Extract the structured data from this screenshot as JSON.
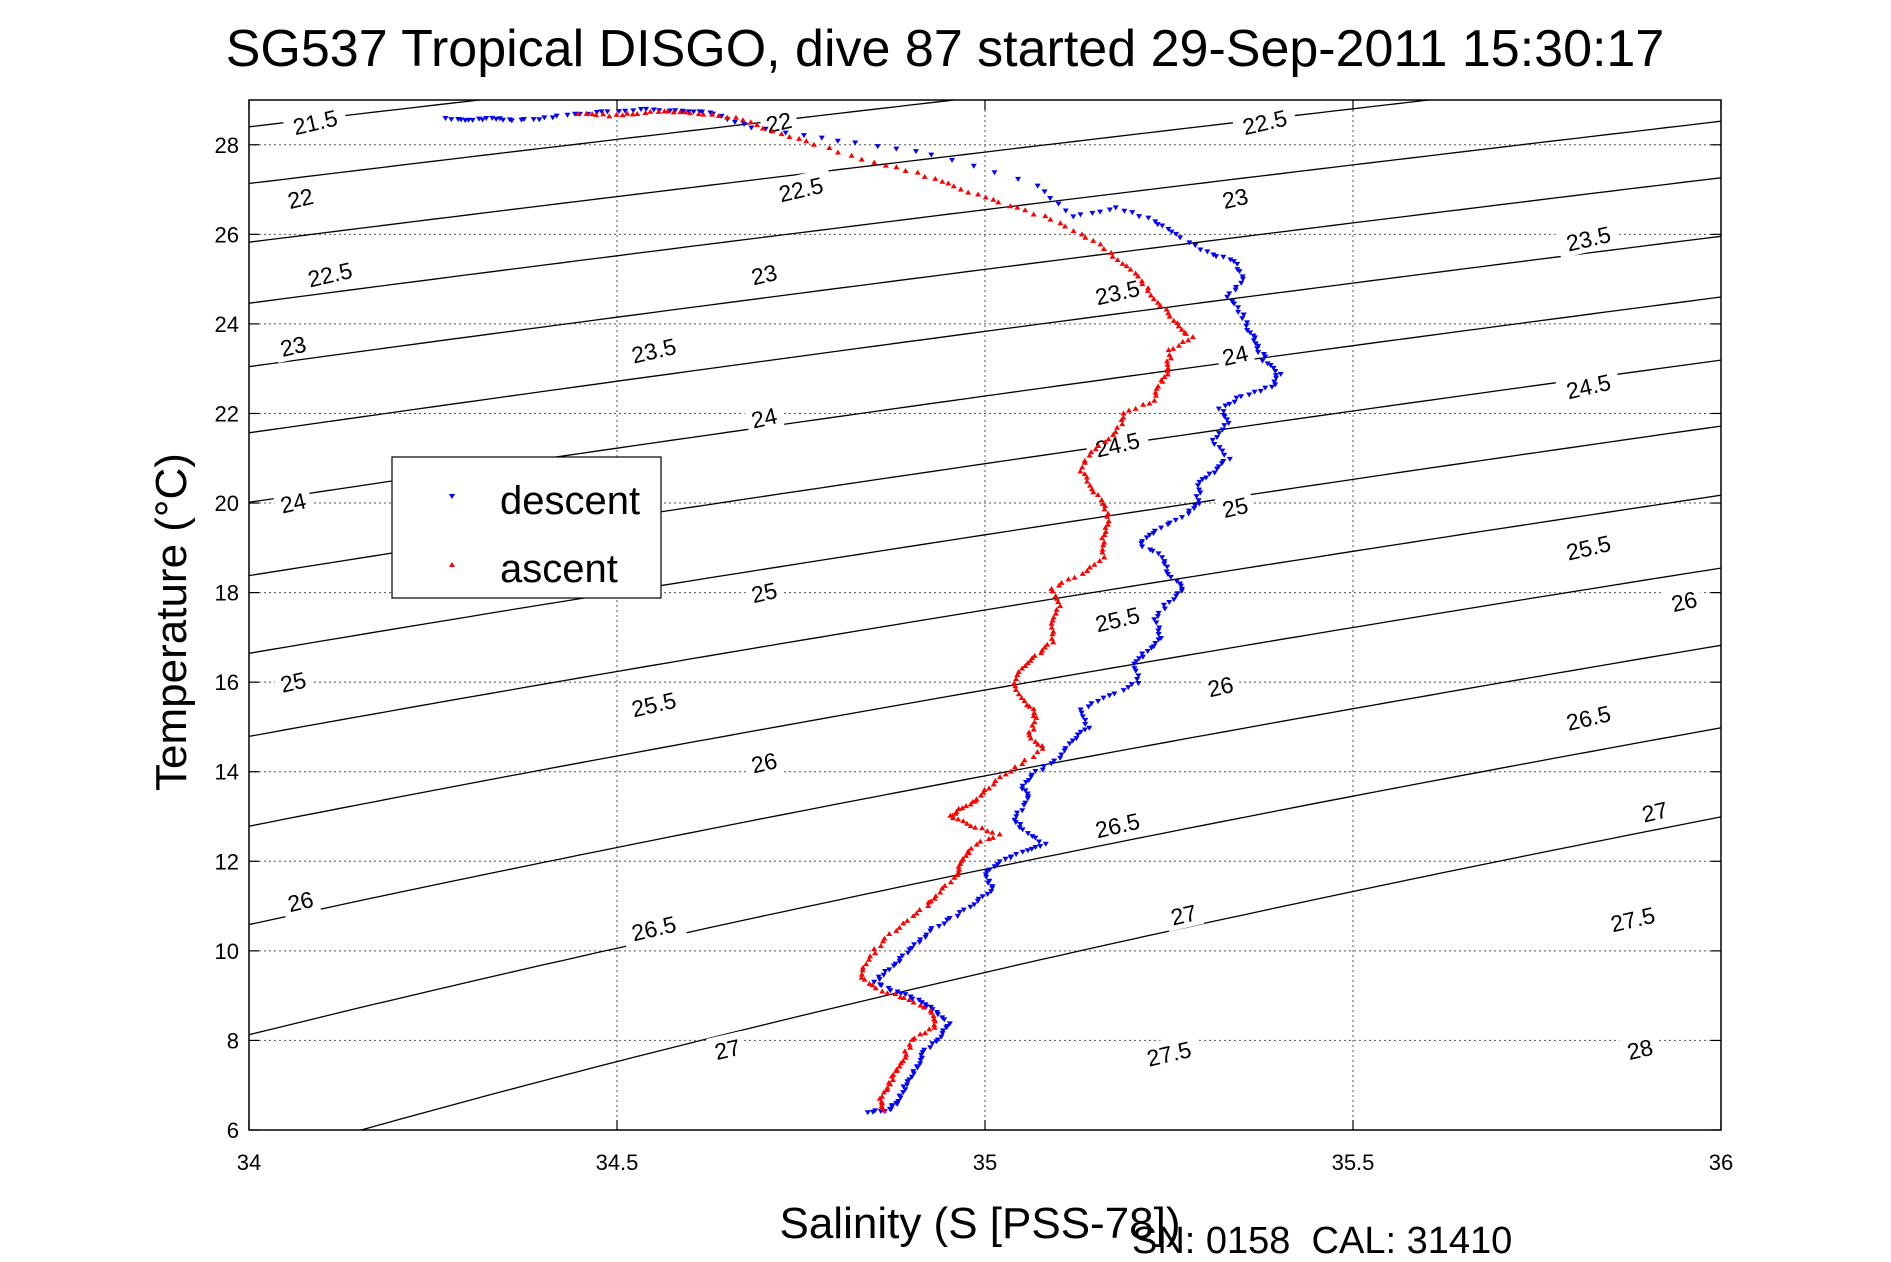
{
  "figure": {
    "title": "SG537 Tropical DISGO, dive 87 started 29-Sep-2011 15:30:17",
    "footer": "SN: 0158  CAL: 31410"
  },
  "chart_data": {
    "type": "scatter",
    "title": "SG537 Tropical DISGO, dive 87 started 29-Sep-2011 15:30:17",
    "xlabel": "Salinity (S [PSS-78])",
    "ylabel": "Temperature (°C)",
    "xlim": [
      34,
      36
    ],
    "ylim": [
      6,
      29
    ],
    "xticks": [
      "34",
      "34.5",
      "35",
      "35.5",
      "36"
    ],
    "yticks": [
      "6",
      "8",
      "10",
      "12",
      "14",
      "16",
      "18",
      "20",
      "22",
      "24",
      "26",
      "28"
    ],
    "grid": true,
    "legend_position": "upper-left",
    "contours": {
      "levels": [
        21.5,
        22,
        22.5,
        23,
        23.5,
        24,
        24.5,
        25,
        25.5,
        26,
        26.5,
        27,
        27.5,
        28
      ],
      "color": "#000000",
      "labels": [
        {
          "text": "21.5",
          "s": 34.09,
          "t": 28.5
        },
        {
          "text": "22",
          "s": 34.07,
          "t": 26.8
        },
        {
          "text": "22.5",
          "s": 34.11,
          "t": 25.1
        },
        {
          "text": "23",
          "s": 34.06,
          "t": 23.5
        },
        {
          "text": "24",
          "s": 34.06,
          "t": 20.0
        },
        {
          "text": "25",
          "s": 34.06,
          "t": 16.0
        },
        {
          "text": "26",
          "s": 34.07,
          "t": 11.1
        },
        {
          "text": "22",
          "s": 34.72,
          "t": 28.5
        },
        {
          "text": "22.5",
          "s": 34.75,
          "t": 27.0
        },
        {
          "text": "23",
          "s": 34.7,
          "t": 25.1
        },
        {
          "text": "23.5",
          "s": 34.55,
          "t": 23.4
        },
        {
          "text": "24",
          "s": 34.7,
          "t": 21.9
        },
        {
          "text": "25",
          "s": 34.7,
          "t": 18.0
        },
        {
          "text": "25.5",
          "s": 34.55,
          "t": 15.5
        },
        {
          "text": "26",
          "s": 34.7,
          "t": 14.2
        },
        {
          "text": "26.5",
          "s": 34.55,
          "t": 10.5
        },
        {
          "text": "27",
          "s": 34.65,
          "t": 7.8
        },
        {
          "text": "22.5",
          "s": 35.38,
          "t": 28.5
        },
        {
          "text": "23",
          "s": 35.34,
          "t": 26.8
        },
        {
          "text": "23.5",
          "s": 35.18,
          "t": 24.7
        },
        {
          "text": "24",
          "s": 35.34,
          "t": 23.3
        },
        {
          "text": "24.5",
          "s": 35.18,
          "t": 21.3
        },
        {
          "text": "25",
          "s": 35.34,
          "t": 19.9
        },
        {
          "text": "25.5",
          "s": 35.18,
          "t": 17.4
        },
        {
          "text": "26",
          "s": 35.32,
          "t": 15.9
        },
        {
          "text": "26.5",
          "s": 35.18,
          "t": 12.8
        },
        {
          "text": "27",
          "s": 35.27,
          "t": 10.8
        },
        {
          "text": "27.5",
          "s": 35.25,
          "t": 7.7
        },
        {
          "text": "23.5",
          "s": 35.82,
          "t": 25.9
        },
        {
          "text": "24.5",
          "s": 35.82,
          "t": 22.6
        },
        {
          "text": "25.5",
          "s": 35.82,
          "t": 19.0
        },
        {
          "text": "26",
          "s": 35.95,
          "t": 17.8
        },
        {
          "text": "26.5",
          "s": 35.82,
          "t": 15.2
        },
        {
          "text": "27",
          "s": 35.91,
          "t": 13.1
        },
        {
          "text": "27.5",
          "s": 35.88,
          "t": 10.7
        },
        {
          "text": "28",
          "s": 35.89,
          "t": 7.8
        }
      ]
    },
    "series": [
      {
        "name": "descent",
        "color": "#0000ff",
        "marker": "triangle-down",
        "points": [
          [
            34.27,
            28.6
          ],
          [
            34.3,
            28.55
          ],
          [
            34.33,
            28.6
          ],
          [
            34.36,
            28.55
          ],
          [
            34.4,
            28.6
          ],
          [
            34.45,
            28.7
          ],
          [
            34.5,
            28.75
          ],
          [
            34.55,
            28.8
          ],
          [
            34.6,
            28.75
          ],
          [
            34.63,
            28.7
          ],
          [
            34.68,
            28.4
          ],
          [
            34.8,
            28.1
          ],
          [
            34.93,
            27.8
          ],
          [
            35.07,
            27.1
          ],
          [
            35.12,
            26.4
          ],
          [
            35.18,
            26.6
          ],
          [
            35.23,
            26.3
          ],
          [
            35.26,
            26.0
          ],
          [
            35.3,
            25.6
          ],
          [
            35.34,
            25.4
          ],
          [
            35.35,
            25.0
          ],
          [
            35.33,
            24.6
          ],
          [
            35.35,
            24.2
          ],
          [
            35.36,
            23.8
          ],
          [
            35.37,
            23.5
          ],
          [
            35.38,
            23.2
          ],
          [
            35.4,
            22.9
          ],
          [
            35.39,
            22.6
          ],
          [
            35.35,
            22.4
          ],
          [
            35.32,
            22.1
          ],
          [
            35.33,
            21.8
          ],
          [
            35.31,
            21.4
          ],
          [
            35.33,
            21.0
          ],
          [
            35.31,
            20.7
          ],
          [
            35.29,
            20.4
          ],
          [
            35.29,
            20.0
          ],
          [
            35.27,
            19.7
          ],
          [
            35.23,
            19.4
          ],
          [
            35.21,
            19.1
          ],
          [
            35.24,
            18.8
          ],
          [
            35.25,
            18.4
          ],
          [
            35.27,
            18.1
          ],
          [
            35.25,
            17.8
          ],
          [
            35.23,
            17.4
          ],
          [
            35.24,
            17.0
          ],
          [
            35.22,
            16.7
          ],
          [
            35.2,
            16.4
          ],
          [
            35.21,
            16.0
          ],
          [
            35.17,
            15.7
          ],
          [
            35.13,
            15.4
          ],
          [
            35.14,
            15.0
          ],
          [
            35.12,
            14.7
          ],
          [
            35.1,
            14.3
          ],
          [
            35.07,
            14.0
          ],
          [
            35.05,
            13.7
          ],
          [
            35.06,
            13.4
          ],
          [
            35.04,
            13.0
          ],
          [
            35.05,
            12.7
          ],
          [
            35.08,
            12.4
          ],
          [
            35.05,
            12.2
          ],
          [
            35.02,
            12.0
          ],
          [
            35.0,
            11.7
          ],
          [
            35.01,
            11.4
          ],
          [
            34.99,
            11.1
          ],
          [
            34.96,
            10.8
          ],
          [
            34.93,
            10.5
          ],
          [
            34.91,
            10.2
          ],
          [
            34.89,
            9.9
          ],
          [
            34.87,
            9.6
          ],
          [
            34.85,
            9.3
          ],
          [
            34.88,
            9.1
          ],
          [
            34.91,
            8.9
          ],
          [
            34.93,
            8.7
          ],
          [
            34.95,
            8.4
          ],
          [
            34.94,
            8.1
          ],
          [
            34.92,
            7.8
          ],
          [
            34.91,
            7.5
          ],
          [
            34.9,
            7.2
          ],
          [
            34.89,
            6.9
          ],
          [
            34.88,
            6.6
          ],
          [
            34.87,
            6.45
          ],
          [
            34.84,
            6.4
          ]
        ]
      },
      {
        "name": "ascent",
        "color": "#ff0000",
        "marker": "triangle-up",
        "points": [
          [
            34.45,
            28.7
          ],
          [
            34.49,
            28.65
          ],
          [
            34.53,
            28.7
          ],
          [
            34.57,
            28.75
          ],
          [
            34.61,
            28.7
          ],
          [
            34.66,
            28.6
          ],
          [
            34.71,
            28.3
          ],
          [
            34.77,
            28.0
          ],
          [
            34.85,
            27.6
          ],
          [
            34.92,
            27.3
          ],
          [
            34.97,
            27.0
          ],
          [
            35.02,
            26.7
          ],
          [
            35.08,
            26.4
          ],
          [
            35.13,
            26.0
          ],
          [
            35.17,
            25.6
          ],
          [
            35.2,
            25.2
          ],
          [
            35.22,
            24.8
          ],
          [
            35.24,
            24.4
          ],
          [
            35.26,
            24.0
          ],
          [
            35.28,
            23.7
          ],
          [
            35.25,
            23.4
          ],
          [
            35.25,
            23.0
          ],
          [
            35.24,
            22.7
          ],
          [
            35.23,
            22.3
          ],
          [
            35.19,
            22.0
          ],
          [
            35.18,
            21.6
          ],
          [
            35.15,
            21.2
          ],
          [
            35.13,
            20.8
          ],
          [
            35.14,
            20.4
          ],
          [
            35.16,
            20.0
          ],
          [
            35.17,
            19.6
          ],
          [
            35.16,
            19.2
          ],
          [
            35.16,
            18.8
          ],
          [
            35.13,
            18.4
          ],
          [
            35.09,
            18.1
          ],
          [
            35.1,
            17.7
          ],
          [
            35.09,
            17.3
          ],
          [
            35.09,
            16.9
          ],
          [
            35.07,
            16.6
          ],
          [
            35.05,
            16.3
          ],
          [
            35.04,
            15.9
          ],
          [
            35.06,
            15.5
          ],
          [
            35.07,
            15.2
          ],
          [
            35.06,
            14.8
          ],
          [
            35.08,
            14.5
          ],
          [
            35.04,
            14.1
          ],
          [
            35.01,
            13.7
          ],
          [
            34.99,
            13.4
          ],
          [
            34.97,
            13.2
          ],
          [
            34.95,
            13.0
          ],
          [
            34.98,
            12.8
          ],
          [
            35.02,
            12.6
          ],
          [
            34.98,
            12.3
          ],
          [
            34.97,
            12.0
          ],
          [
            34.96,
            11.7
          ],
          [
            34.94,
            11.3
          ],
          [
            34.92,
            11.0
          ],
          [
            34.89,
            10.6
          ],
          [
            34.86,
            10.2
          ],
          [
            34.84,
            9.8
          ],
          [
            34.83,
            9.4
          ],
          [
            34.86,
            9.1
          ],
          [
            34.9,
            8.9
          ],
          [
            34.93,
            8.6
          ],
          [
            34.93,
            8.3
          ],
          [
            34.9,
            8.0
          ],
          [
            34.89,
            7.6
          ],
          [
            34.88,
            7.3
          ],
          [
            34.87,
            7.0
          ],
          [
            34.86,
            6.7
          ],
          [
            34.86,
            6.45
          ]
        ]
      }
    ]
  }
}
